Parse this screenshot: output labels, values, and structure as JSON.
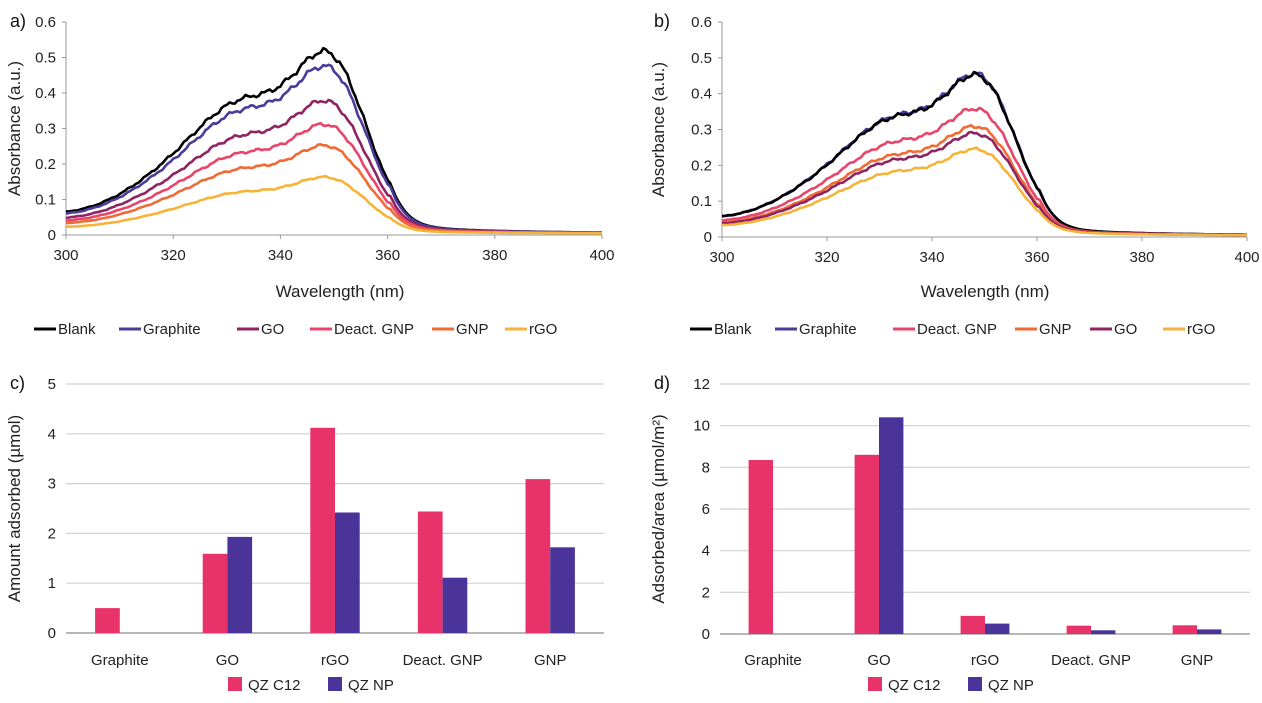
{
  "chart_data": [
    {
      "panel": "a)",
      "type": "line",
      "xlabel": "Wavelength (nm)",
      "ylabel": "Absorbance (a.u.)",
      "xlim": [
        300,
        400
      ],
      "ylim": [
        0,
        0.6
      ],
      "xticks": [
        300,
        320,
        340,
        360,
        380,
        400
      ],
      "yticks": [
        0,
        0.1,
        0.2,
        0.3,
        0.4,
        0.5,
        0.6
      ],
      "legend_position": "bottom",
      "series": [
        {
          "name": "Blank",
          "color": "#000000",
          "peak": 0.5
        },
        {
          "name": "Graphite",
          "color": "#4a3b9c",
          "peak": 0.46
        },
        {
          "name": "GO",
          "color": "#8e2462",
          "peak": 0.365
        },
        {
          "name": "Deact. GNP",
          "color": "#e8456b",
          "peak": 0.3
        },
        {
          "name": "GNP",
          "color": "#ef6a35",
          "peak": 0.242
        },
        {
          "name": "rGO",
          "color": "#f6b33a",
          "peak": 0.155
        }
      ]
    },
    {
      "panel": "b)",
      "type": "line",
      "xlabel": "Wavelength (nm)",
      "ylabel": "Absorbance (a.u.)",
      "xlim": [
        300,
        400
      ],
      "ylim": [
        0,
        0.6
      ],
      "xticks": [
        300,
        320,
        340,
        360,
        380,
        400
      ],
      "yticks": [
        0,
        0.1,
        0.2,
        0.3,
        0.4,
        0.5,
        0.6
      ],
      "legend_position": "bottom",
      "series": [
        {
          "name": "Blank",
          "color": "#000000",
          "peak": 0.437
        },
        {
          "name": "Graphite",
          "color": "#4a3b9c",
          "peak": 0.44
        },
        {
          "name": "Deact. GNP",
          "color": "#e8456b",
          "peak": 0.345
        },
        {
          "name": "GNP",
          "color": "#ef6a35",
          "peak": 0.297
        },
        {
          "name": "GO",
          "color": "#8e2462",
          "peak": 0.278
        },
        {
          "name": "rGO",
          "color": "#f6b33a",
          "peak": 0.235
        }
      ]
    },
    {
      "panel": "c)",
      "type": "bar",
      "ylabel": "Amount adsorbed (µmol)",
      "ylim": [
        0,
        5
      ],
      "yticks": [
        0,
        1,
        2,
        3,
        4,
        5
      ],
      "grid": true,
      "legend_position": "bottom",
      "categories": [
        "Graphite",
        "GO",
        "rGO",
        "Deact. GNP",
        "GNP"
      ],
      "series": [
        {
          "name": "QZ C12",
          "color": "#e8336a",
          "values": [
            0.5,
            1.59,
            4.12,
            2.44,
            3.09
          ]
        },
        {
          "name": "QZ NP",
          "color": "#4a3399",
          "values": [
            0,
            1.93,
            2.42,
            1.11,
            1.72
          ]
        }
      ]
    },
    {
      "panel": "d)",
      "type": "bar",
      "ylabel": "Adsorbed/area (µmol/m²)",
      "ylim": [
        0,
        12
      ],
      "yticks": [
        0,
        2,
        4,
        6,
        8,
        10,
        12
      ],
      "grid": true,
      "legend_position": "bottom",
      "categories": [
        "Graphite",
        "GO",
        "rGO",
        "Deact. GNP",
        "GNP"
      ],
      "series": [
        {
          "name": "QZ C12",
          "color": "#e8336a",
          "values": [
            8.35,
            8.6,
            0.87,
            0.4,
            0.42
          ]
        },
        {
          "name": "QZ NP",
          "color": "#4a3399",
          "values": [
            0,
            10.4,
            0.5,
            0.18,
            0.22
          ]
        }
      ]
    }
  ]
}
